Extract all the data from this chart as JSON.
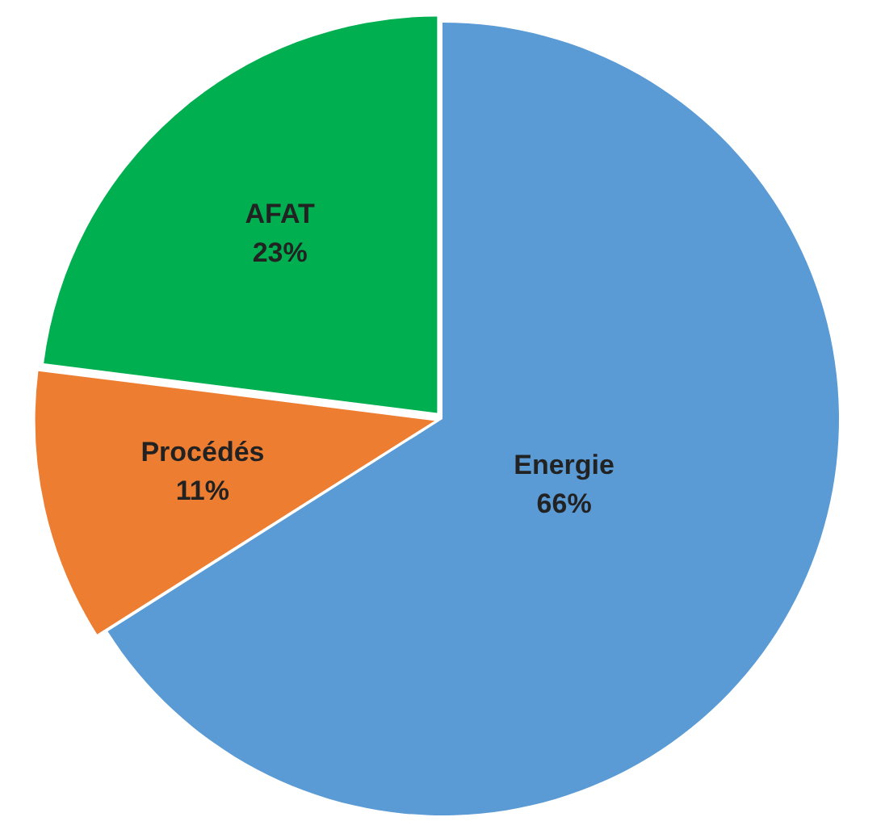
{
  "chart_data": {
    "type": "pie",
    "categories": [
      "Energie",
      "Procédés",
      "AFAT"
    ],
    "values": [
      66,
      11,
      23
    ],
    "colors": [
      "#5b9bd5",
      "#ed7d31",
      "#00b050"
    ],
    "value_labels": [
      "66%",
      "11%",
      "23%"
    ],
    "legend": false
  }
}
